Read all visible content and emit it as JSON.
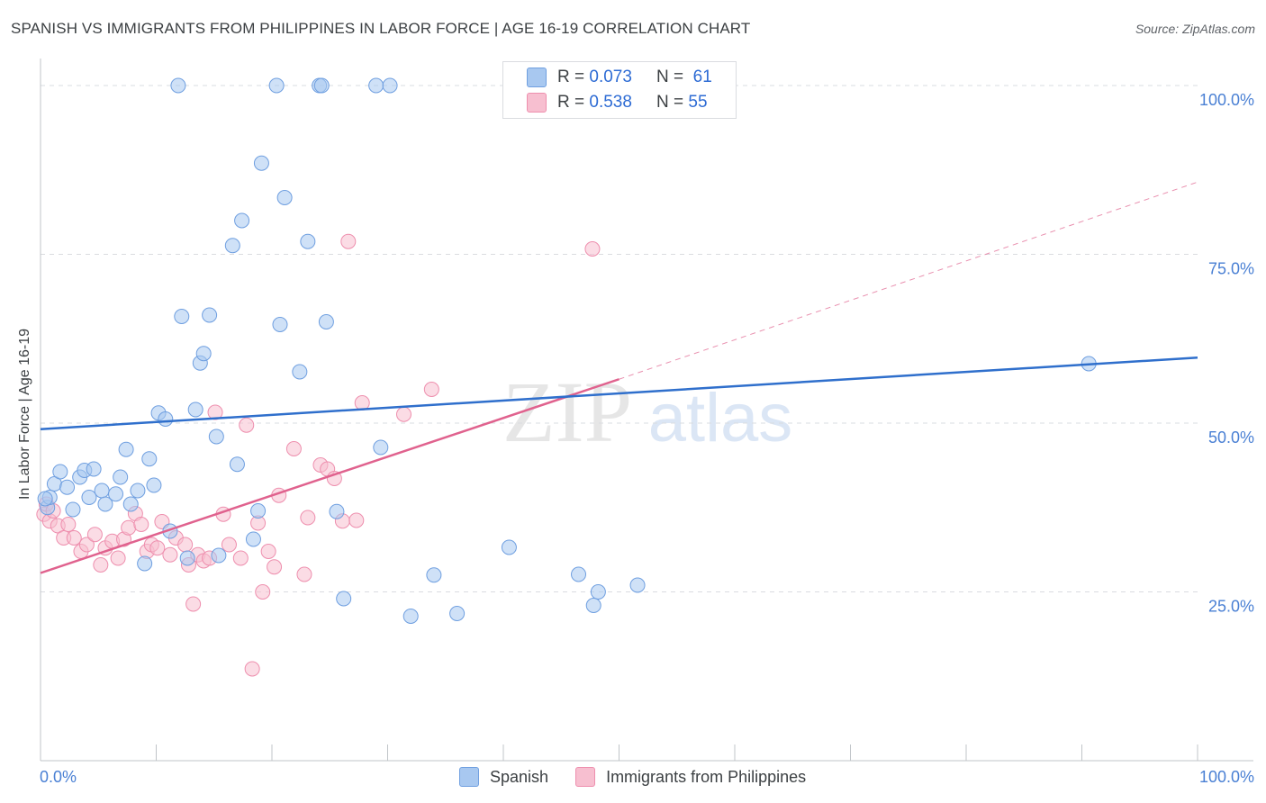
{
  "title": "SPANISH VS IMMIGRANTS FROM PHILIPPINES IN LABOR FORCE | AGE 16-19 CORRELATION CHART",
  "source": "Source: ZipAtlas.com",
  "watermark": {
    "zip": "ZIP",
    "atlas": "atlas"
  },
  "legend_top": {
    "rows": [
      {
        "r_label": "R = ",
        "r_value": "0.073",
        "n_label": "N = ",
        "n_value": "61"
      },
      {
        "r_label": "R = ",
        "r_value": "0.538",
        "n_label": "N = ",
        "n_value": "55"
      }
    ]
  },
  "colors": {
    "spanish_fill": "#a8c8f0",
    "spanish_stroke": "#6f9fe0",
    "spanish_line": "#2f6fcc",
    "phil_fill": "#f7bfd0",
    "phil_stroke": "#ee8fae",
    "phil_line": "#e0628e",
    "grid": "#dadce0",
    "axis_text": "#4a80d4"
  },
  "chart_data": {
    "type": "scatter",
    "title": "SPANISH VS IMMIGRANTS FROM PHILIPPINES IN LABOR FORCE | AGE 16-19 CORRELATION CHART",
    "xlabel": "",
    "ylabel": "In Labor Force | Age 16-19",
    "xlim": [
      0,
      100
    ],
    "ylim": [
      0,
      104
    ],
    "x_tick_labels": [
      "0.0%",
      "100.0%"
    ],
    "y_ticks": [
      25,
      50,
      75,
      100
    ],
    "y_tick_labels": [
      "25.0%",
      "50.0%",
      "75.0%",
      "100.0%"
    ],
    "grid": true,
    "legend": "bottom-center",
    "series": [
      {
        "name": "Spanish",
        "r": 0.073,
        "n": 61,
        "trend": {
          "x": [
            0,
            100
          ],
          "y": [
            49.1,
            59.7
          ]
        },
        "points": [
          [
            0.6,
            37.5
          ],
          [
            0.8,
            39.0
          ],
          [
            1.2,
            41.0
          ],
          [
            1.7,
            42.8
          ],
          [
            2.3,
            40.5
          ],
          [
            2.8,
            37.2
          ],
          [
            3.4,
            42.0
          ],
          [
            3.8,
            43.0
          ],
          [
            4.2,
            39.0
          ],
          [
            4.6,
            43.2
          ],
          [
            5.3,
            40.0
          ],
          [
            5.6,
            38.0
          ],
          [
            6.5,
            39.5
          ],
          [
            6.9,
            42.0
          ],
          [
            7.4,
            46.1
          ],
          [
            7.8,
            38.0
          ],
          [
            8.4,
            40.0
          ],
          [
            9.0,
            29.2
          ],
          [
            9.4,
            44.7
          ],
          [
            9.8,
            40.8
          ],
          [
            10.2,
            51.5
          ],
          [
            10.8,
            50.6
          ],
          [
            11.2,
            34.0
          ],
          [
            11.9,
            100.0
          ],
          [
            12.2,
            65.8
          ],
          [
            12.7,
            30.0
          ],
          [
            13.4,
            52.0
          ],
          [
            13.8,
            58.9
          ],
          [
            14.1,
            60.3
          ],
          [
            14.6,
            66.0
          ],
          [
            15.2,
            48.0
          ],
          [
            15.4,
            30.4
          ],
          [
            16.6,
            76.3
          ],
          [
            17.0,
            43.9
          ],
          [
            17.4,
            80.0
          ],
          [
            18.4,
            32.8
          ],
          [
            18.8,
            37.0
          ],
          [
            19.1,
            88.5
          ],
          [
            20.4,
            100.0
          ],
          [
            20.7,
            64.6
          ],
          [
            21.1,
            83.4
          ],
          [
            22.4,
            57.6
          ],
          [
            23.1,
            76.9
          ],
          [
            24.1,
            100.0
          ],
          [
            24.3,
            100.0
          ],
          [
            24.7,
            65.0
          ],
          [
            25.6,
            36.9
          ],
          [
            26.2,
            24.0
          ],
          [
            29.0,
            100.0
          ],
          [
            29.4,
            46.4
          ],
          [
            30.2,
            100.0
          ],
          [
            32.0,
            21.4
          ],
          [
            34.0,
            27.5
          ],
          [
            36.0,
            21.8
          ],
          [
            40.5,
            31.6
          ],
          [
            46.5,
            27.6
          ],
          [
            47.8,
            23.0
          ],
          [
            48.2,
            25.0
          ],
          [
            51.6,
            26.0
          ],
          [
            90.6,
            58.8
          ],
          [
            0.4,
            38.8
          ]
        ]
      },
      {
        "name": "Immigrants from Philippines",
        "r": 0.538,
        "n": 55,
        "trend": {
          "x": [
            0,
            50
          ],
          "y": [
            27.8,
            56.5
          ]
        },
        "trend_extended": {
          "x": [
            50,
            100
          ],
          "y": [
            56.5,
            85.7
          ]
        },
        "points": [
          [
            0.3,
            36.5
          ],
          [
            0.5,
            38.0
          ],
          [
            0.8,
            35.5
          ],
          [
            1.1,
            37.0
          ],
          [
            1.5,
            34.8
          ],
          [
            2.0,
            33.0
          ],
          [
            2.4,
            35.0
          ],
          [
            2.9,
            33.0
          ],
          [
            3.5,
            31.0
          ],
          [
            4.0,
            32.0
          ],
          [
            4.7,
            33.5
          ],
          [
            5.2,
            29.0
          ],
          [
            5.6,
            31.5
          ],
          [
            6.2,
            32.5
          ],
          [
            6.7,
            30.0
          ],
          [
            7.2,
            32.8
          ],
          [
            7.6,
            34.5
          ],
          [
            8.2,
            36.6
          ],
          [
            8.7,
            35.0
          ],
          [
            9.2,
            31.0
          ],
          [
            9.6,
            32.0
          ],
          [
            10.1,
            31.5
          ],
          [
            10.5,
            35.4
          ],
          [
            11.2,
            30.5
          ],
          [
            11.7,
            33.0
          ],
          [
            12.5,
            32.0
          ],
          [
            12.8,
            29.0
          ],
          [
            13.2,
            23.2
          ],
          [
            13.6,
            30.5
          ],
          [
            14.1,
            29.6
          ],
          [
            14.6,
            30.0
          ],
          [
            15.1,
            51.6
          ],
          [
            15.8,
            36.5
          ],
          [
            16.3,
            32.0
          ],
          [
            17.3,
            30.0
          ],
          [
            17.8,
            49.7
          ],
          [
            18.3,
            13.6
          ],
          [
            18.8,
            35.2
          ],
          [
            19.2,
            25.0
          ],
          [
            19.7,
            31.0
          ],
          [
            20.2,
            28.7
          ],
          [
            20.6,
            39.3
          ],
          [
            21.9,
            46.2
          ],
          [
            22.8,
            27.6
          ],
          [
            23.1,
            36.0
          ],
          [
            24.2,
            43.8
          ],
          [
            24.8,
            43.2
          ],
          [
            25.4,
            41.8
          ],
          [
            26.1,
            35.5
          ],
          [
            26.6,
            76.9
          ],
          [
            27.3,
            35.6
          ],
          [
            27.8,
            53.0
          ],
          [
            31.4,
            51.3
          ],
          [
            33.8,
            55.0
          ],
          [
            47.7,
            75.8
          ]
        ]
      }
    ]
  },
  "legend_bottom": [
    {
      "label": "Spanish"
    },
    {
      "label": "Immigrants from Philippines"
    }
  ]
}
